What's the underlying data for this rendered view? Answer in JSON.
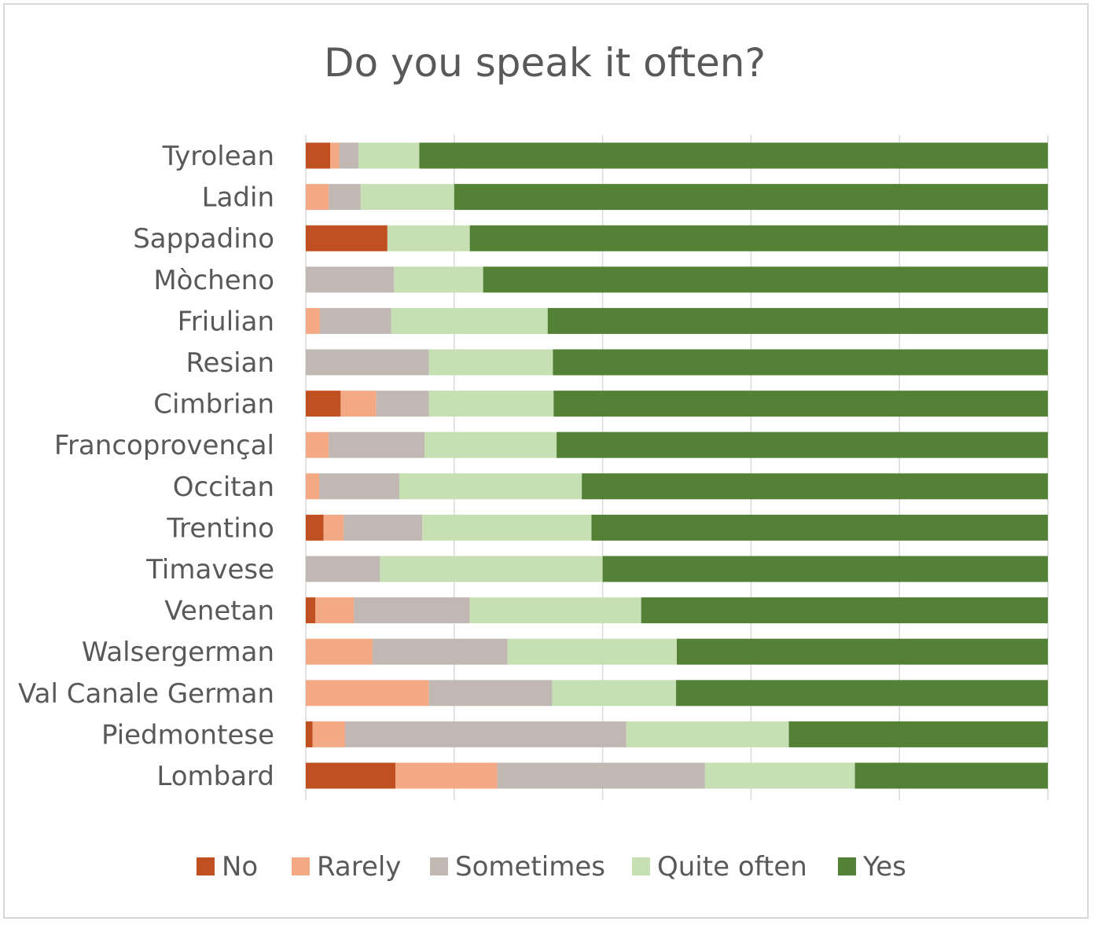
{
  "chart_data": {
    "type": "bar",
    "orientation": "horizontal",
    "stacked": "percent",
    "title": "Do you speak it often?",
    "xlabel": "",
    "ylabel": "",
    "xlim": [
      0,
      1
    ],
    "grid": true,
    "legend_position": "bottom",
    "categories": [
      "Tyrolean",
      "Ladin",
      "Sappadino",
      "Mòcheno",
      "Friulian",
      "Resian",
      "Cimbrian",
      "Francoprovençal",
      "Occitan",
      "Trentino",
      "Timavese",
      "Venetan",
      "Walsergerman",
      "Val Canale German",
      "Piedmontese",
      "Lombard"
    ],
    "series": [
      {
        "name": "No",
        "color": "#c0501f",
        "values": [
          0.033,
          0.0,
          0.11,
          0.0,
          0.0,
          0.0,
          0.047,
          0.0,
          0.0,
          0.024,
          0.0,
          0.013,
          0.0,
          0.0,
          0.009,
          0.121
        ]
      },
      {
        "name": "Rarely",
        "color": "#f3aa84",
        "values": [
          0.012,
          0.031,
          0.0,
          0.0,
          0.019,
          0.0,
          0.048,
          0.031,
          0.018,
          0.027,
          0.0,
          0.052,
          0.09,
          0.166,
          0.044,
          0.137
        ]
      },
      {
        "name": "Sometimes",
        "color": "#c2b8b3",
        "values": [
          0.026,
          0.043,
          0.0,
          0.119,
          0.096,
          0.166,
          0.071,
          0.129,
          0.108,
          0.106,
          0.1,
          0.156,
          0.182,
          0.166,
          0.379,
          0.28
        ]
      },
      {
        "name": "Quite often",
        "color": "#c6e0b4",
        "values": [
          0.082,
          0.126,
          0.111,
          0.12,
          0.211,
          0.167,
          0.168,
          0.178,
          0.246,
          0.228,
          0.3,
          0.231,
          0.228,
          0.167,
          0.219,
          0.202
        ]
      },
      {
        "name": "Yes",
        "color": "#538135",
        "values": [
          0.847,
          0.8,
          0.779,
          0.761,
          0.674,
          0.667,
          0.666,
          0.662,
          0.628,
          0.615,
          0.6,
          0.548,
          0.5,
          0.501,
          0.349,
          0.26
        ]
      }
    ]
  }
}
